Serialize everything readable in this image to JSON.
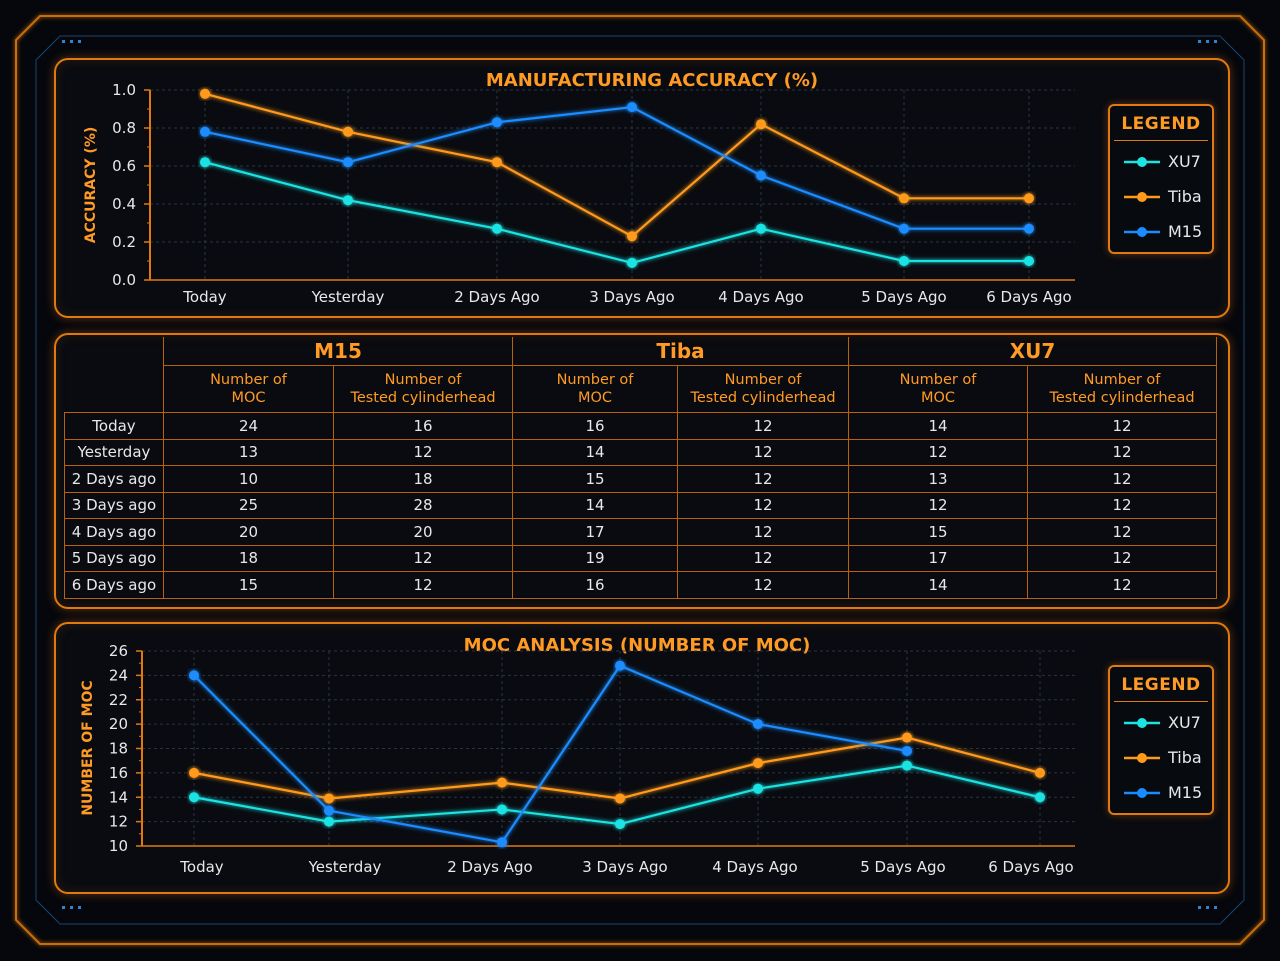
{
  "charts": [
    {
      "id": "accuracy",
      "type": "line",
      "title": "MANUFACTURING ACCURACY (%)",
      "xlabel": "",
      "ylabel": "ACCURACY (%)",
      "categories": [
        "Today",
        "Yesterday",
        "2 Days Ago",
        "3 Days Ago",
        "4 Days Ago",
        "5 Days Ago",
        "6 Days Ago"
      ],
      "ylim": [
        0,
        1.0
      ],
      "yticks": [
        "0.0",
        "0.2",
        "0.4",
        "0.6",
        "0.8",
        "1.0"
      ],
      "grid": true,
      "legend_position": "right",
      "series": [
        {
          "name": "XU7",
          "color": "#1ee3e3",
          "values": [
            0.62,
            0.42,
            0.27,
            0.09,
            0.27,
            0.1,
            0.1
          ]
        },
        {
          "name": "Tiba",
          "color": "#ff9a1a",
          "values": [
            0.98,
            0.78,
            0.62,
            0.23,
            0.82,
            0.43,
            0.43
          ]
        },
        {
          "name": "M15",
          "color": "#1a8cff",
          "values": [
            0.78,
            0.62,
            0.83,
            0.91,
            0.55,
            0.27,
            0.27
          ]
        }
      ]
    },
    {
      "id": "moc",
      "type": "line",
      "title": "MOC ANALYSIS (NUMBER OF MOC)",
      "xlabel": "",
      "ylabel": "NUMBER OF MOC",
      "categories": [
        "Today",
        "Yesterday",
        "2 Days Ago",
        "3 Days Ago",
        "4 Days Ago",
        "5 Days Ago",
        "6 Days Ago"
      ],
      "ylim": [
        10,
        26
      ],
      "yticks": [
        "10",
        "12",
        "14",
        "16",
        "18",
        "20",
        "22",
        "24",
        "26"
      ],
      "grid": true,
      "legend_position": "right",
      "series": [
        {
          "name": "XU7",
          "color": "#1ee3e3",
          "values": [
            14,
            12,
            13,
            11.8,
            14.7,
            16.6,
            14
          ]
        },
        {
          "name": "Tiba",
          "color": "#ff9a1a",
          "values": [
            16,
            13.9,
            15.2,
            13.9,
            16.8,
            18.9,
            16
          ]
        },
        {
          "name": "M15",
          "color": "#1a8cff",
          "values": [
            24,
            12.9,
            10.3,
            24.8,
            20,
            17.8,
            null
          ]
        }
      ]
    }
  ],
  "legend_title": "LEGEND",
  "table": {
    "groups": [
      "M15",
      "Tiba",
      "XU7"
    ],
    "subheaders": [
      "Number of MOC",
      "Number of Tested cylinderhead"
    ],
    "subheader_lines": [
      [
        "Number of",
        "MOC"
      ],
      [
        "Number of",
        "Tested cylinderhead"
      ]
    ],
    "rows": [
      {
        "label": "Today",
        "cells": [
          "24",
          "16",
          "16",
          "12",
          "14",
          "12"
        ]
      },
      {
        "label": "Yesterday",
        "cells": [
          "13",
          "12",
          "14",
          "12",
          "12",
          "12"
        ]
      },
      {
        "label": "2 Days ago",
        "cells": [
          "10",
          "18",
          "15",
          "12",
          "13",
          "12"
        ]
      },
      {
        "label": "3 Days ago",
        "cells": [
          "25",
          "28",
          "14",
          "12",
          "12",
          "12"
        ]
      },
      {
        "label": "4 Days ago",
        "cells": [
          "20",
          "20",
          "17",
          "12",
          "15",
          "12"
        ]
      },
      {
        "label": "5 Days ago",
        "cells": [
          "18",
          "12",
          "19",
          "12",
          "17",
          "12"
        ]
      },
      {
        "label": "6 Days ago",
        "cells": [
          "15",
          "12",
          "16",
          "12",
          "14",
          "12"
        ]
      }
    ]
  }
}
